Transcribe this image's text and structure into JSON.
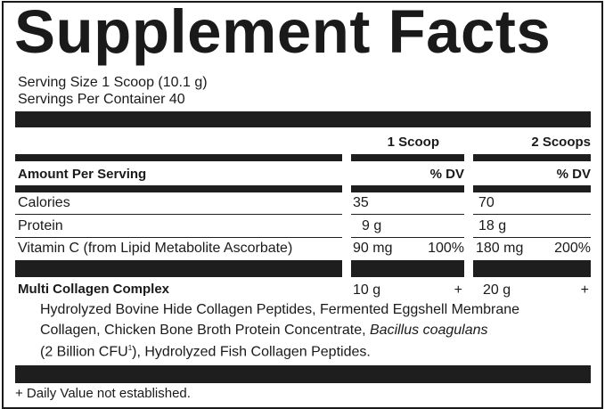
{
  "title": "Supplement Facts",
  "serving_size": "Serving Size 1 Scoop (10.1 g)",
  "servings_per_container": "Servings Per Container 40",
  "columns": [
    "1 Scoop",
    "2 Scoops"
  ],
  "amount_per_serving": "Amount Per Serving",
  "dv_header": "% DV",
  "rows": [
    {
      "name": "Calories",
      "amt1": "35",
      "dv1": "",
      "amt2": "70",
      "dv2": ""
    },
    {
      "name": "Protein",
      "amt1": "9 g",
      "dv1": "",
      "amt2": "18 g",
      "dv2": ""
    },
    {
      "name": "Vitamin C (from Lipid Metabolite Ascorbate)",
      "amt1": "90 mg",
      "dv1": "100%",
      "amt2": "180 mg",
      "dv2": "200%"
    }
  ],
  "blend": {
    "name": "Multi Collagen Complex",
    "amt1": "10 g",
    "dv1": "+",
    "amt2": "20 g",
    "dv2": "+",
    "ingredients_line1": "Hydrolyzed Bovine Hide Collagen Peptides, Fermented Eggshell Membrane",
    "ingredients_line2a": "Collagen, Chicken Bone Broth Protein Concentrate, ",
    "ingredients_line2b": "Bacillus coagulans",
    "ingredients_line3a": "(2 Billion CFU",
    "ingredients_line3sup": "1",
    "ingredients_line3b": "), Hydrolyzed Fish Collagen Peptides."
  },
  "footnote": "+ Daily Value not established."
}
